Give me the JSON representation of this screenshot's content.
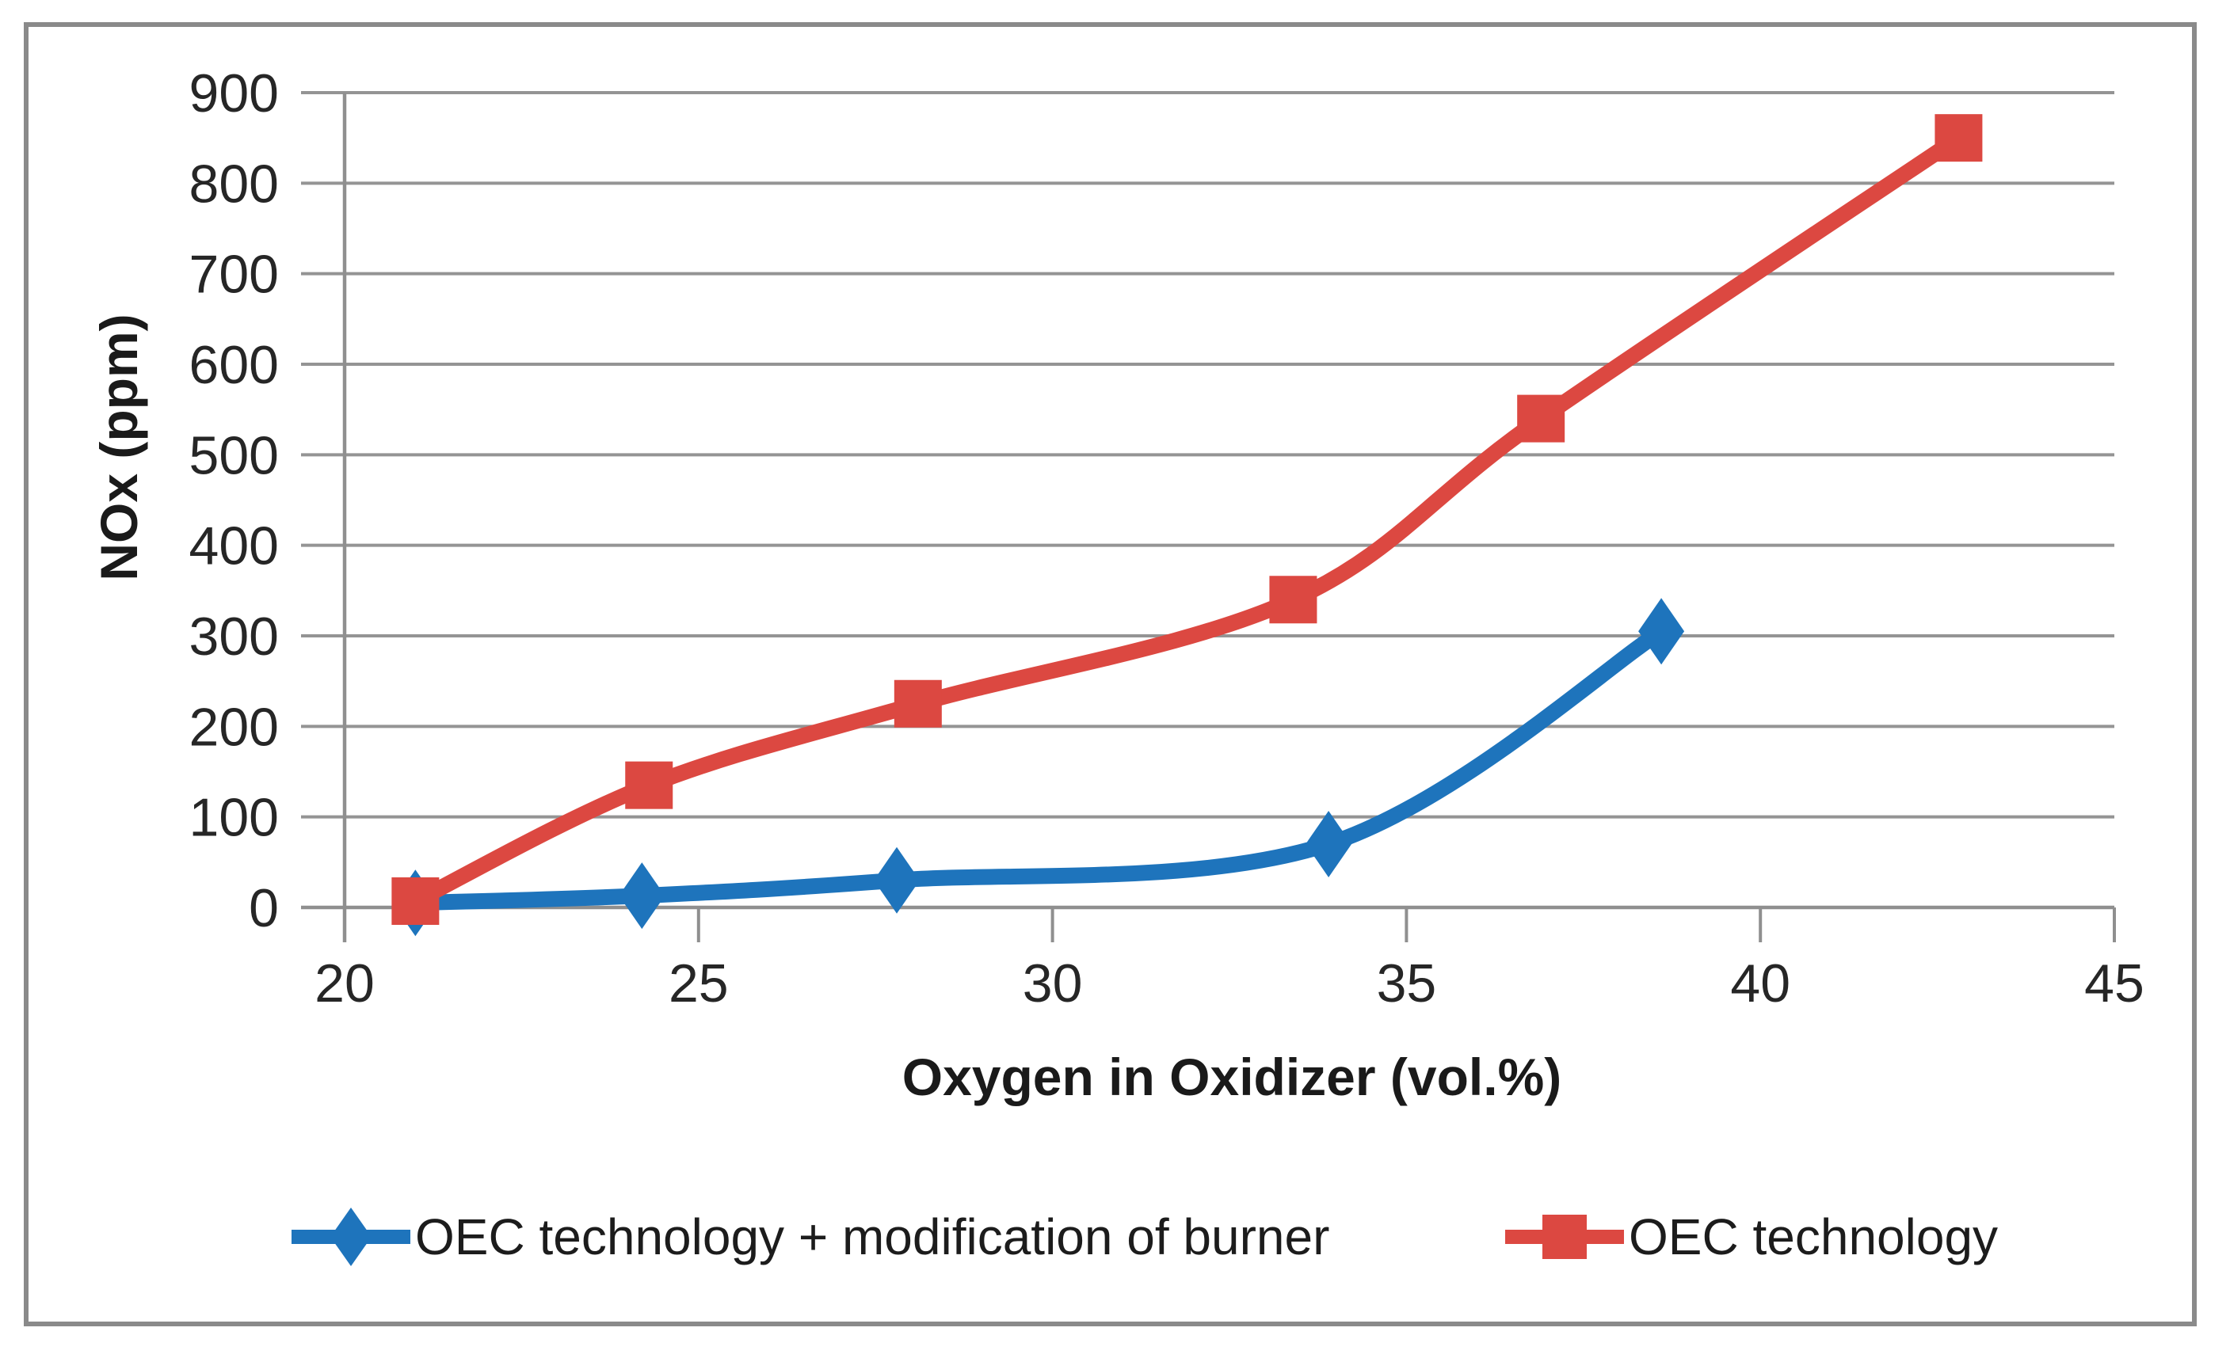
{
  "chart_data": {
    "type": "line",
    "title": "",
    "xlabel": "Oxygen in Oxidizer (vol.%)",
    "ylabel": "NOx (ppm)",
    "xlim": [
      20,
      45
    ],
    "ylim": [
      0,
      900
    ],
    "xticks": [
      20,
      25,
      30,
      35,
      40,
      45
    ],
    "yticks": [
      0,
      100,
      200,
      300,
      400,
      500,
      600,
      700,
      800,
      900
    ],
    "grid": "horizontal",
    "line_style": "smooth",
    "legend_position": "bottom",
    "series": [
      {
        "name": "OEC technology + modification of burner",
        "color": "#1e74bc",
        "marker": "diamond",
        "points": [
          [
            21,
            5
          ],
          [
            24.2,
            13
          ],
          [
            27.8,
            30
          ],
          [
            33.9,
            70
          ],
          [
            38.6,
            305
          ]
        ]
      },
      {
        "name": "OEC technology",
        "color": "#dc4841",
        "marker": "square",
        "points": [
          [
            21,
            7
          ],
          [
            24.3,
            135
          ],
          [
            28.1,
            225
          ],
          [
            33.4,
            340
          ],
          [
            36.9,
            540
          ],
          [
            42.8,
            850
          ]
        ]
      }
    ]
  },
  "colors": {
    "background": "#ffffff",
    "frame_border": "#8a8a8a",
    "gridline": "#949494",
    "axis_line": "#8f8f8f",
    "tick_text": "#262626",
    "title_text": "#1a1a1a"
  }
}
